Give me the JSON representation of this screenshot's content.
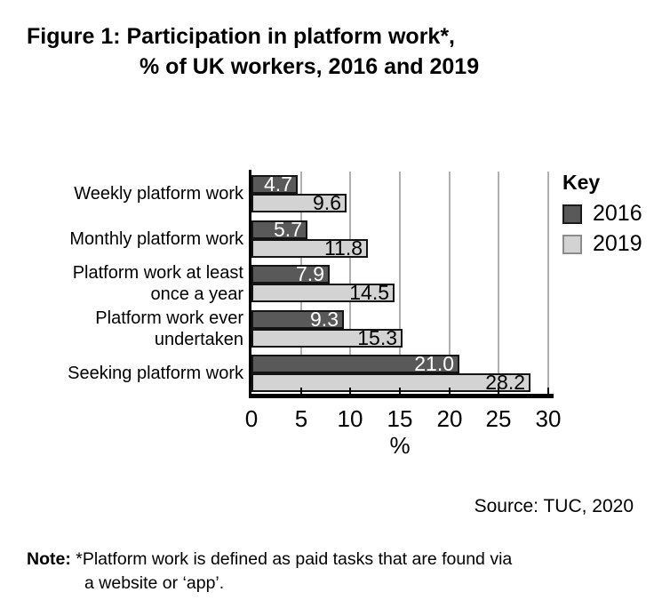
{
  "figure": {
    "title_line1": "Figure 1: Participation in platform work*,",
    "title_line2": "% of UK workers, 2016 and 2019",
    "source": "Source: TUC, 2020",
    "note_label": "Note:",
    "note_line1": " *Platform work is defined as paid tasks that are found via",
    "note_line2": "a website or ‘app’."
  },
  "chart_data": {
    "type": "bar",
    "orientation": "horizontal",
    "categories": [
      "Weekly platform work",
      "Monthly platform work",
      "Platform work at least\nonce a year",
      "Platform work ever\nundertaken",
      "Seeking platform work"
    ],
    "series": [
      {
        "name": "2016",
        "color": "#595959",
        "label_color": "#ffffff",
        "swatch_border": "#1a1a1a",
        "values": [
          4.7,
          5.7,
          7.9,
          9.3,
          21.0
        ]
      },
      {
        "name": "2019",
        "color": "#d3d3d3",
        "label_color": "#000000",
        "swatch_border": "#8c8c8c",
        "values": [
          9.6,
          11.8,
          14.5,
          15.3,
          28.2
        ]
      }
    ],
    "value_label_decimals": 1,
    "xlabel": "%",
    "xlim": [
      0,
      30
    ],
    "xticks": [
      0,
      5,
      10,
      15,
      20,
      25,
      30
    ],
    "grid": true,
    "gridline_color": "#b0b0b0",
    "legend_title": "Key",
    "legend_position": "right"
  }
}
